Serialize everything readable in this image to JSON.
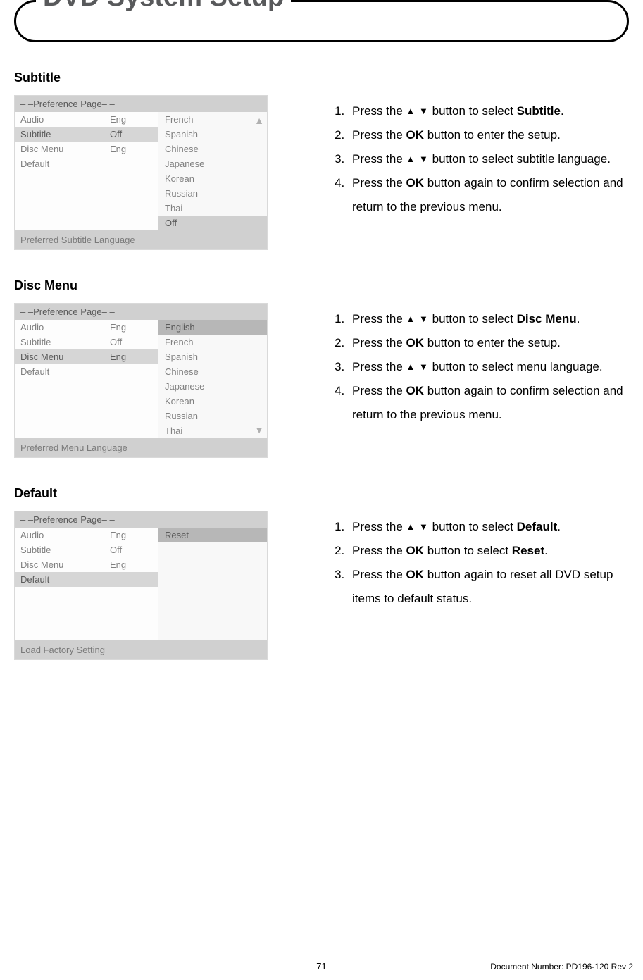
{
  "page_title": "DVD System Setup",
  "page_number": "71",
  "doc_number": "Document Number: PD196-120 Rev 2",
  "panel_header": "– –Preference Page– –",
  "pref_items": [
    {
      "label": "Audio",
      "value": "Eng"
    },
    {
      "label": "Subtitle",
      "value": "Off"
    },
    {
      "label": "Disc Menu",
      "value": "Eng"
    },
    {
      "label": "Default",
      "value": ""
    }
  ],
  "sections": {
    "subtitle": {
      "heading": "Subtitle",
      "selected_left_index": 1,
      "options": [
        "French",
        "Spanish",
        "Chinese",
        "Japanese",
        "Korean",
        "Russian",
        "Thai",
        "Off"
      ],
      "selected_opt_index": 7,
      "highlight_opt_index": null,
      "scroll_up": true,
      "scroll_down": false,
      "footer": "Preferred Subtitle Language",
      "steps": [
        "Press the ▲▼ button to select <b>Subtitle</b>.",
        "Press the <b>OK</b> button to enter the setup.",
        "Press the ▲▼ button to select subtitle language.",
        "Press the <b>OK</b> button again to confirm selection and return to the previous menu."
      ]
    },
    "discmenu": {
      "heading": "Disc Menu",
      "selected_left_index": 2,
      "options": [
        "English",
        "French",
        "Spanish",
        "Chinese",
        "Japanese",
        "Korean",
        "Russian",
        "Thai"
      ],
      "selected_opt_index": null,
      "highlight_opt_index": 0,
      "scroll_up": false,
      "scroll_down": true,
      "footer": "Preferred Menu Language",
      "steps": [
        "Press the ▲▼ button to select <b>Disc Menu</b>.",
        "Press the <b>OK</b> button to enter the setup.",
        "Press the ▲▼ button to select menu language.",
        "Press the <b>OK</b> button again to confirm selection and return to the previous menu."
      ]
    },
    "default": {
      "heading": "Default",
      "selected_left_index": 3,
      "options": [
        "Reset"
      ],
      "selected_opt_index": null,
      "highlight_opt_index": 0,
      "scroll_up": false,
      "scroll_down": false,
      "footer": "Load Factory Setting",
      "steps": [
        "Press the ▲▼ button to select <b>Default</b>.",
        "Press the <b>OK</b> button to select <b>Reset</b>.",
        "Press the <b>OK</b> button again to reset all DVD setup items to default status."
      ]
    }
  },
  "colors": {
    "title_color": "#58595b",
    "panel_bg": "#f4f4f4",
    "panel_header_bg": "#d0d0d0",
    "panel_text": "#808080",
    "row_sel_bg": "#d6d6d6",
    "opt_hl_bg": "#b7b7b7",
    "scroll_arrow_color": "#b0b0b0"
  }
}
